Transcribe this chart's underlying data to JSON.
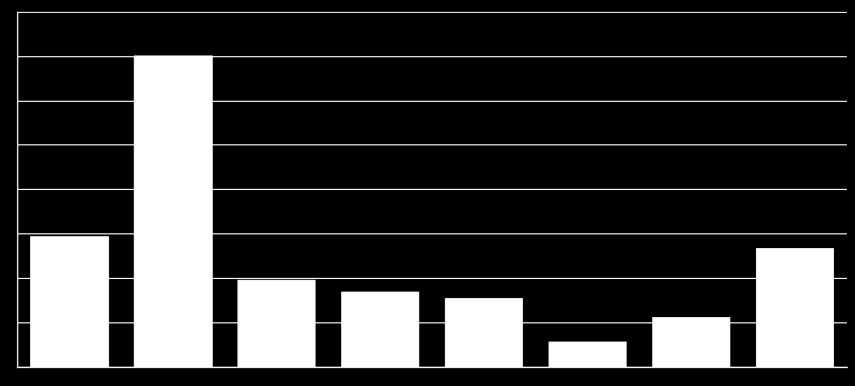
{
  "values": [
    21,
    50,
    14,
    12,
    11,
    4,
    8,
    19
  ],
  "bar_color": "#ffffff",
  "background_color": "#000000",
  "grid_color": "#ffffff",
  "ylim": [
    0,
    57
  ],
  "ytick_count": 9,
  "bar_width": 0.75,
  "bar_edge_color": "#ffffff",
  "grid_linewidth": 0.9,
  "spine_color": "#ffffff"
}
